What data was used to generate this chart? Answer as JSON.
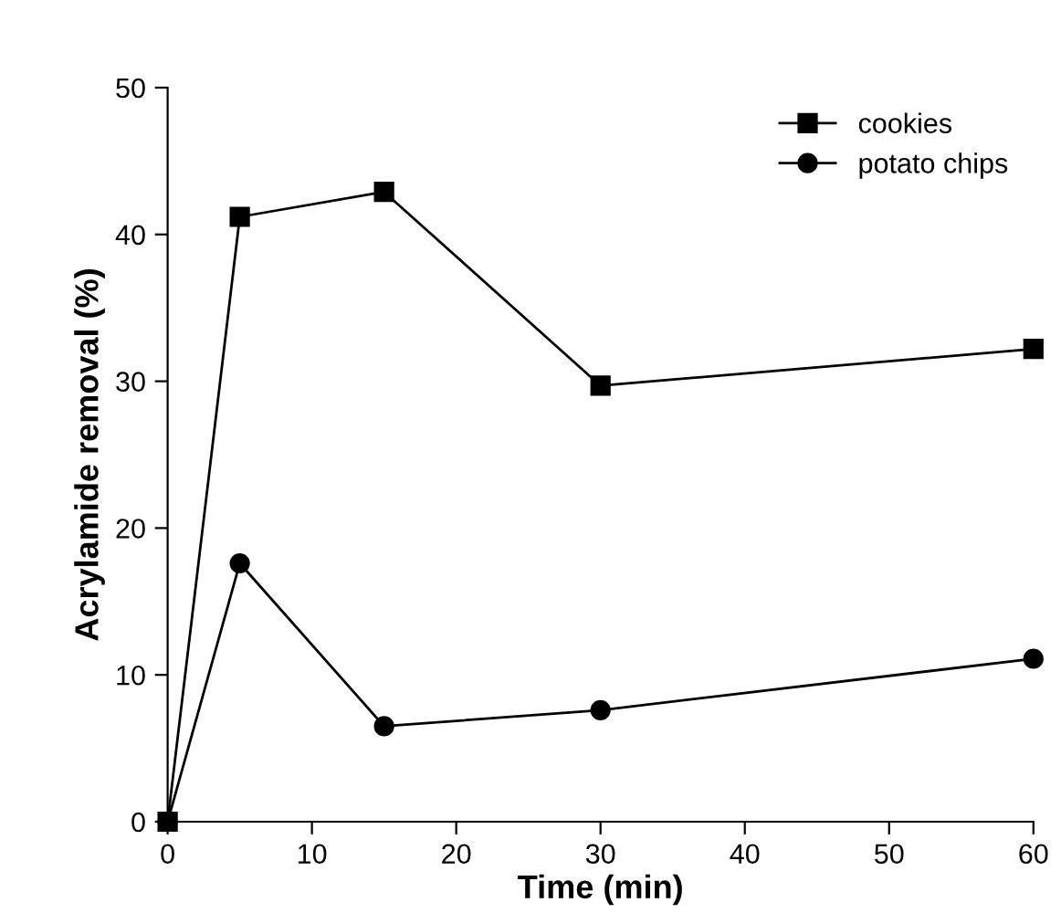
{
  "chart_data": {
    "type": "line",
    "xlabel": "Time (min)",
    "ylabel": "Acrylamide removal (%)",
    "x": [
      0,
      5,
      15,
      30,
      60
    ],
    "series": [
      {
        "name": "cookies",
        "color": "#000000",
        "marker": "square",
        "values": [
          0,
          41.2,
          42.9,
          29.7,
          32.2
        ]
      },
      {
        "name": "potato chips",
        "color": "#000000",
        "marker": "circle",
        "values": [
          0,
          17.6,
          6.5,
          7.6,
          11.1
        ]
      }
    ],
    "xlim": [
      0,
      60
    ],
    "ylim": [
      0,
      50
    ],
    "xticks": [
      0,
      10,
      20,
      30,
      40,
      50,
      60
    ],
    "yticks": [
      0,
      10,
      20,
      30,
      40,
      50
    ],
    "grid": false,
    "legend": "top right",
    "line_style": "solid"
  }
}
